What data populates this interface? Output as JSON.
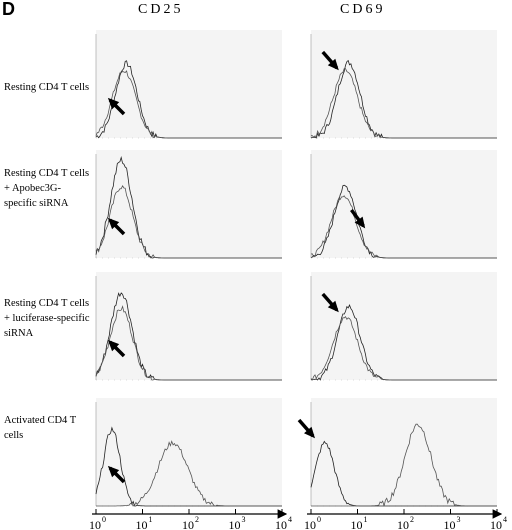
{
  "panel_letter": "D",
  "columns": [
    "CD25",
    "CD69"
  ],
  "rows": [
    "Resting CD4 T cells",
    "Resting CD4 T cells + Apobec3G-specific siRNA",
    "Resting CD4 T cells + luciferase-specific siRNA",
    "Activated CD4 T cells"
  ],
  "chart_data": {
    "type": "line",
    "description_fields": {
      "x_axis": {
        "scale": "log",
        "range": [
          1,
          10000
        ],
        "ticks": [
          "10^0",
          "10^1",
          "10^2",
          "10^3",
          "10^4"
        ]
      },
      "grid": false,
      "legend": "none"
    },
    "xlim": [
      1,
      10000
    ],
    "xscale": "log",
    "x_tick_labels": [
      "10",
      "10",
      "10",
      "10",
      "10"
    ],
    "x_tick_exponents": [
      "0",
      "1",
      "2",
      "3",
      "4"
    ],
    "panels": [
      {
        "row": 0,
        "col": 0,
        "series": [
          {
            "peak_x": 4.5,
            "width": 0.23,
            "height": 0.73
          },
          {
            "peak_x": 4.0,
            "width": 0.25,
            "height": 0.66
          }
        ],
        "arrow": "lower-left"
      },
      {
        "row": 0,
        "col": 1,
        "series": [
          {
            "peak_x": 6.5,
            "width": 0.24,
            "height": 0.74
          },
          {
            "peak_x": 5.5,
            "width": 0.26,
            "height": 0.66
          }
        ],
        "arrow": "upper-left"
      },
      {
        "row": 1,
        "col": 0,
        "series": [
          {
            "peak_x": 3.5,
            "width": 0.23,
            "height": 0.96
          },
          {
            "peak_x": 3.5,
            "width": 0.24,
            "height": 0.7
          }
        ],
        "arrow": "lower-left"
      },
      {
        "row": 1,
        "col": 1,
        "series": [
          {
            "peak_x": 5.5,
            "width": 0.24,
            "height": 0.7
          },
          {
            "peak_x": 5.0,
            "width": 0.26,
            "height": 0.62
          }
        ],
        "arrow": "lower-right"
      },
      {
        "row": 2,
        "col": 0,
        "series": [
          {
            "peak_x": 3.5,
            "width": 0.23,
            "height": 0.86
          },
          {
            "peak_x": 3.5,
            "width": 0.24,
            "height": 0.7
          }
        ],
        "arrow": "lower-left"
      },
      {
        "row": 2,
        "col": 1,
        "series": [
          {
            "peak_x": 6.5,
            "width": 0.24,
            "height": 0.72
          },
          {
            "peak_x": 5.5,
            "width": 0.26,
            "height": 0.62
          }
        ],
        "arrow": "upper-left"
      },
      {
        "row": 3,
        "col": 0,
        "series": [
          {
            "peak_x": 2.2,
            "width": 0.18,
            "height": 0.75
          },
          {
            "peak_x": 45,
            "width": 0.32,
            "height": 0.62
          }
        ],
        "arrow": "lower-left"
      },
      {
        "row": 3,
        "col": 1,
        "series": [
          {
            "peak_x": 2.0,
            "width": 0.2,
            "height": 0.62
          },
          {
            "peak_x": 200,
            "width": 0.28,
            "height": 0.8
          }
        ],
        "arrow": "upper-left"
      }
    ]
  }
}
